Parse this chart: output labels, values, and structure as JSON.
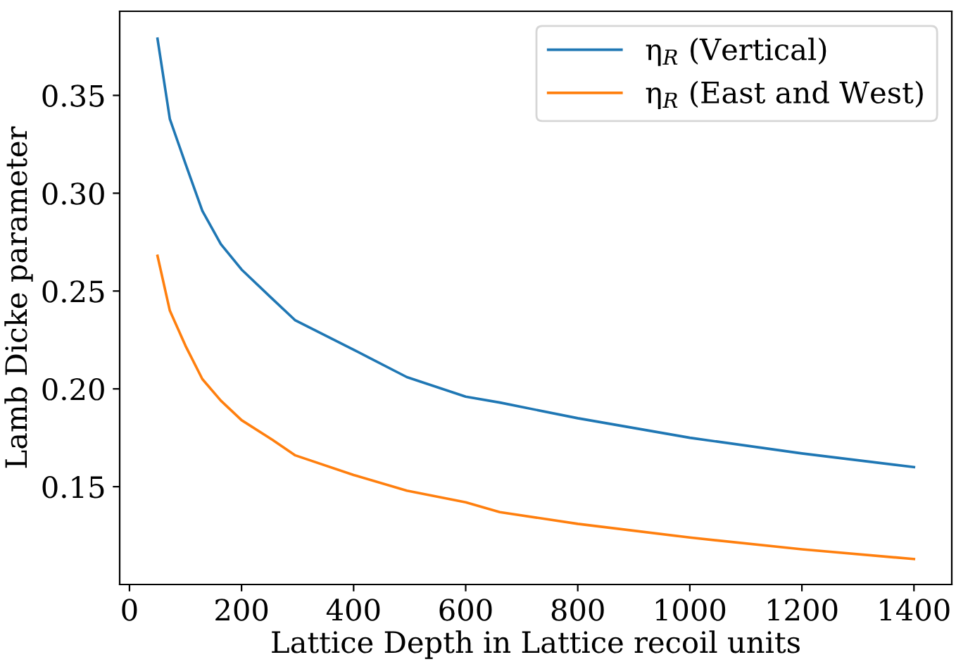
{
  "chart_data": {
    "type": "line",
    "xlabel": "Lattice Depth in Lattice recoil units",
    "ylabel": "Lamb Dicke parameter",
    "x": [
      50,
      72,
      100,
      130,
      163,
      200,
      255,
      296,
      400,
      495,
      600,
      661,
      800,
      1000,
      1200,
      1400
    ],
    "series": [
      {
        "name": "η$_{R}$ (Vertical)",
        "color": "#1f77b4",
        "values": [
          0.379,
          0.338,
          0.315,
          0.291,
          0.274,
          0.261,
          0.246,
          0.235,
          0.22,
          0.206,
          0.196,
          0.193,
          0.185,
          0.175,
          0.167,
          0.16
        ]
      },
      {
        "name": "η$_{R}$ (East and West)",
        "color": "#ff7f0e",
        "values": [
          0.268,
          0.24,
          0.222,
          0.205,
          0.194,
          0.184,
          0.174,
          0.166,
          0.156,
          0.148,
          0.142,
          0.137,
          0.131,
          0.124,
          0.118,
          0.113
        ]
      }
    ],
    "xlim": [
      -17.5,
      1467.5
    ],
    "ylim": [
      0.1,
      0.393
    ],
    "xticks": [
      0,
      200,
      400,
      600,
      800,
      1000,
      1200,
      1400
    ],
    "yticks": [
      0.15,
      {
        "value": 0.2,
        "label": "0.20"
      },
      0.25,
      {
        "value": 0.3,
        "label": "0.30"
      },
      0.35
    ],
    "legend": "top right",
    "grid": false
  }
}
